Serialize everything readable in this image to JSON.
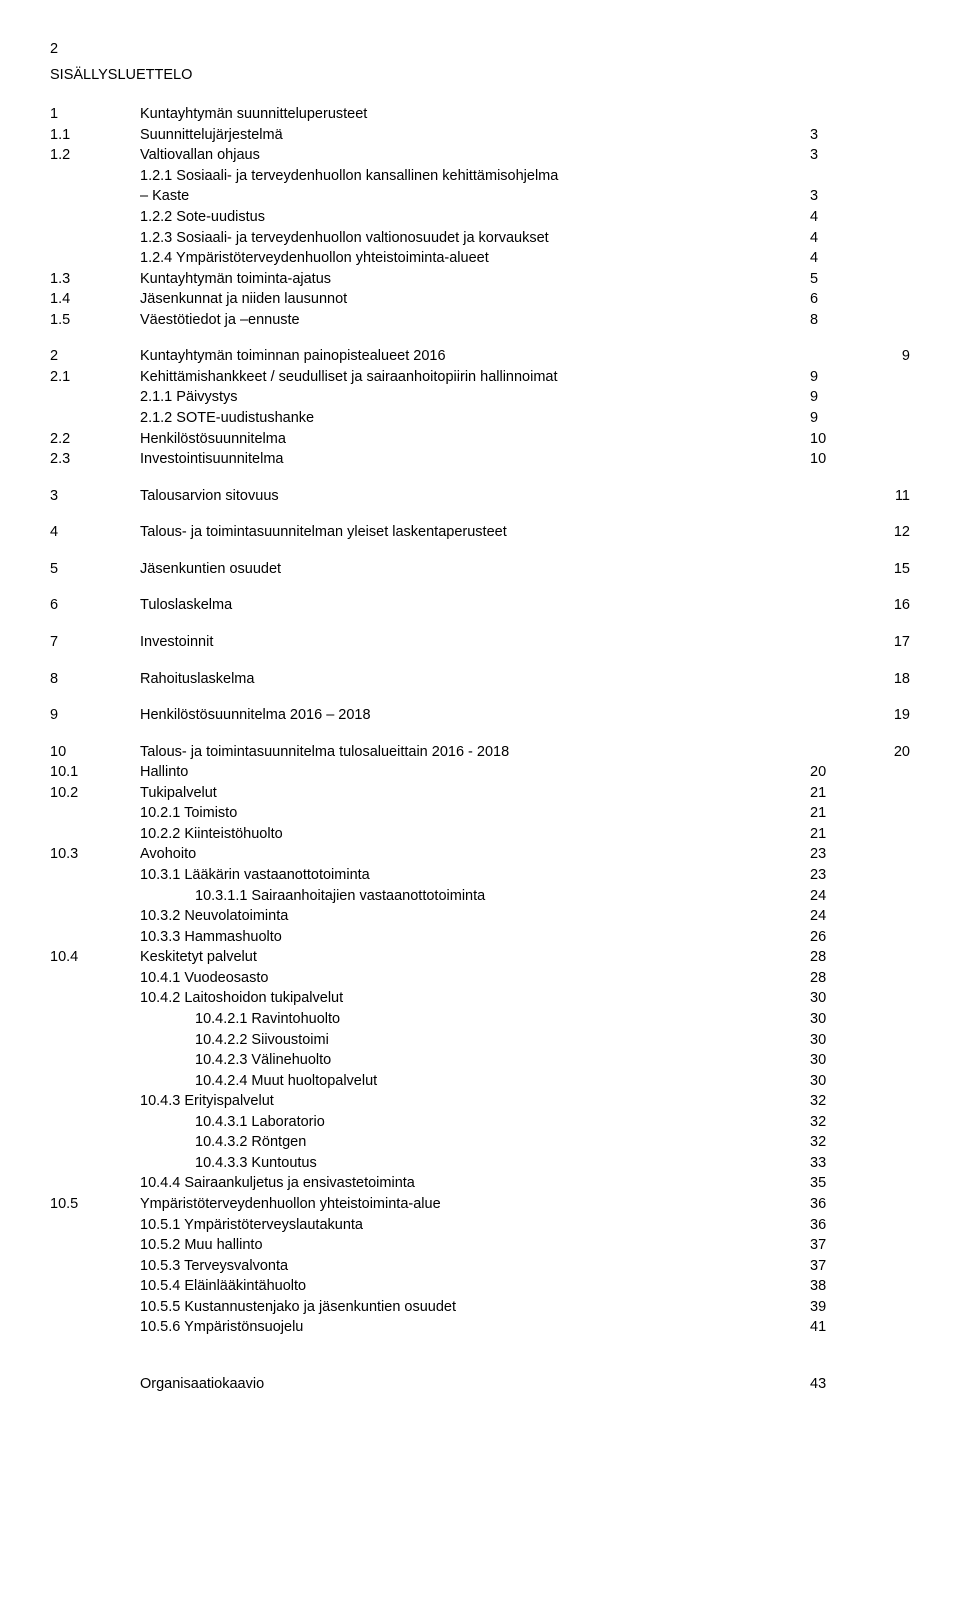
{
  "page_number": "2",
  "doc_title": "SISÄLLYSLUETTELO",
  "toc": [
    {
      "n": "1",
      "label": "Kuntayhtymän suunnitteluperusteet",
      "p1": "",
      "p2": "",
      "indent": 0
    },
    {
      "n": "1.1",
      "label": "Suunnittelujärjestelmä",
      "p1": "3",
      "p2": "",
      "indent": 0
    },
    {
      "n": "1.2",
      "label": "Valtiovallan ohjaus",
      "p1": "3",
      "p2": "",
      "indent": 0
    },
    {
      "n": "",
      "label": "1.2.1 Sosiaali- ja terveydenhuollon kansallinen kehittämisohjelma",
      "p1": "",
      "p2": "",
      "indent": 0
    },
    {
      "n": "",
      "label": "– Kaste",
      "p1": "3",
      "p2": "",
      "indent": 0
    },
    {
      "n": "",
      "label": "1.2.2 Sote-uudistus",
      "p1": "4",
      "p2": "",
      "indent": 0
    },
    {
      "n": "",
      "label": "1.2.3 Sosiaali- ja terveydenhuollon valtionosuudet ja korvaukset",
      "p1": "4",
      "p2": "",
      "indent": 0
    },
    {
      "n": "",
      "label": "1.2.4 Ympäristöterveydenhuollon yhteistoiminta-alueet",
      "p1": "4",
      "p2": "",
      "indent": 0
    },
    {
      "n": "1.3",
      "label": "Kuntayhtymän toiminta-ajatus",
      "p1": "5",
      "p2": "",
      "indent": 0
    },
    {
      "n": "1.4",
      "label": "Jäsenkunnat ja niiden lausunnot",
      "p1": "6",
      "p2": "",
      "indent": 0
    },
    {
      "n": "1.5",
      "label": "Väestötiedot ja –ennuste",
      "p1": "8",
      "p2": "",
      "indent": 0
    },
    {
      "gap": true
    },
    {
      "n": "2",
      "label": "Kuntayhtymän toiminnan painopistealueet 2016",
      "p1": "",
      "p2": "9",
      "indent": 0
    },
    {
      "n": "2.1",
      "label": "Kehittämishankkeet / seudulliset ja sairaanhoitopiirin hallinnoimat",
      "p1": "9",
      "p2": "",
      "indent": 0
    },
    {
      "n": "",
      "label": "2.1.1 Päivystys",
      "p1": "9",
      "p2": "",
      "indent": 0
    },
    {
      "n": "",
      "label": "2.1.2 SOTE-uudistushanke",
      "p1": "9",
      "p2": "",
      "indent": 0
    },
    {
      "n": "2.2",
      "label": "Henkilöstösuunnitelma",
      "p1": "10",
      "p2": "",
      "indent": 0
    },
    {
      "n": "2.3",
      "label": "Investointisuunnitelma",
      "p1": "10",
      "p2": "",
      "indent": 0
    },
    {
      "gap": true
    },
    {
      "n": "3",
      "label": "Talousarvion sitovuus",
      "p1": "",
      "p2": "11",
      "indent": 0
    },
    {
      "gap": true
    },
    {
      "n": "4",
      "label": "Talous- ja toimintasuunnitelman yleiset laskentaperusteet",
      "p1": "",
      "p2": "12",
      "indent": 0
    },
    {
      "gap": true
    },
    {
      "n": "5",
      "label": "Jäsenkuntien osuudet",
      "p1": "",
      "p2": "15",
      "indent": 0
    },
    {
      "gap": true
    },
    {
      "n": "6",
      "label": "Tuloslaskelma",
      "p1": "",
      "p2": "16",
      "indent": 0
    },
    {
      "gap": true
    },
    {
      "n": "7",
      "label": "Investoinnit",
      "p1": "",
      "p2": "17",
      "indent": 0
    },
    {
      "gap": true
    },
    {
      "n": "8",
      "label": "Rahoituslaskelma",
      "p1": "",
      "p2": "18",
      "indent": 0
    },
    {
      "gap": true
    },
    {
      "n": "9",
      "label": "Henkilöstösuunnitelma 2016 – 2018",
      "p1": "",
      "p2": "19",
      "indent": 0
    },
    {
      "gap": true
    },
    {
      "n": "10",
      "label": "Talous- ja toimintasuunnitelma tulosalueittain 2016 - 2018",
      "p1": "",
      "p2": "20",
      "indent": 0
    },
    {
      "n": "10.1",
      "label": "Hallinto",
      "p1": "20",
      "p2": "",
      "indent": 0
    },
    {
      "n": "10.2",
      "label": "Tukipalvelut",
      "p1": "21",
      "p2": "",
      "indent": 0
    },
    {
      "n": "",
      "label": "10.2.1 Toimisto",
      "p1": "21",
      "p2": "",
      "indent": 0
    },
    {
      "n": "",
      "label": "10.2.2 Kiinteistöhuolto",
      "p1": "21",
      "p2": "",
      "indent": 0
    },
    {
      "n": "10.3",
      "label": "Avohoito",
      "p1": "23",
      "p2": "",
      "indent": 0
    },
    {
      "n": "",
      "label": "10.3.1 Lääkärin vastaanottotoiminta",
      "p1": "23",
      "p2": "",
      "indent": 0
    },
    {
      "n": "",
      "label": "10.3.1.1 Sairaanhoitajien vastaanottotoiminta",
      "p1": "24",
      "p2": "",
      "indent": 2
    },
    {
      "n": "",
      "label": "10.3.2 Neuvolatoiminta",
      "p1": "24",
      "p2": "",
      "indent": 0
    },
    {
      "n": "",
      "label": "10.3.3 Hammashuolto",
      "p1": "26",
      "p2": "",
      "indent": 0
    },
    {
      "n": "10.4",
      "label": "Keskitetyt palvelut",
      "p1": "28",
      "p2": "",
      "indent": 0
    },
    {
      "n": "",
      "label": "10.4.1 Vuodeosasto",
      "p1": "28",
      "p2": "",
      "indent": 0
    },
    {
      "n": "",
      "label": "10.4.2 Laitoshoidon tukipalvelut",
      "p1": "30",
      "p2": "",
      "indent": 0
    },
    {
      "n": "",
      "label": "10.4.2.1 Ravintohuolto",
      "p1": "30",
      "p2": "",
      "indent": 2
    },
    {
      "n": "",
      "label": "10.4.2.2 Siivoustoimi",
      "p1": "30",
      "p2": "",
      "indent": 2
    },
    {
      "n": "",
      "label": "10.4.2.3 Välinehuolto",
      "p1": "30",
      "p2": "",
      "indent": 2
    },
    {
      "n": "",
      "label": "10.4.2.4 Muut huoltopalvelut",
      "p1": "30",
      "p2": "",
      "indent": 2
    },
    {
      "n": "",
      "label": "10.4.3 Erityispalvelut",
      "p1": "32",
      "p2": "",
      "indent": 0
    },
    {
      "n": "",
      "label": "10.4.3.1 Laboratorio",
      "p1": "32",
      "p2": "",
      "indent": 2
    },
    {
      "n": "",
      "label": "10.4.3.2 Röntgen",
      "p1": "32",
      "p2": "",
      "indent": 2
    },
    {
      "n": "",
      "label": "10.4.3.3 Kuntoutus",
      "p1": "33",
      "p2": "",
      "indent": 2
    },
    {
      "n": "",
      "label": "10.4.4 Sairaankuljetus ja ensivastetoiminta",
      "p1": "35",
      "p2": "",
      "indent": 0
    },
    {
      "n": "10.5",
      "label": "Ympäristöterveydenhuollon yhteistoiminta-alue",
      "p1": "36",
      "p2": "",
      "indent": 0
    },
    {
      "n": "",
      "label": "10.5.1 Ympäristöterveyslautakunta",
      "p1": "36",
      "p2": "",
      "indent": 0
    },
    {
      "n": "",
      "label": "10.5.2 Muu hallinto",
      "p1": "37",
      "p2": "",
      "indent": 0
    },
    {
      "n": "",
      "label": "10.5.3 Terveysvalvonta",
      "p1": "37",
      "p2": "",
      "indent": 0
    },
    {
      "n": "",
      "label": "10.5.4 Eläinlääkintähuolto",
      "p1": "38",
      "p2": "",
      "indent": 0
    },
    {
      "n": "",
      "label": "10.5.5 Kustannustenjako ja jäsenkuntien osuudet",
      "p1": "39",
      "p2": "",
      "indent": 0
    },
    {
      "n": "",
      "label": "10.5.6 Ympäristönsuojelu",
      "p1": "41",
      "p2": "",
      "indent": 0
    }
  ],
  "footer": {
    "label": "Organisaatiokaavio",
    "page": "43"
  }
}
